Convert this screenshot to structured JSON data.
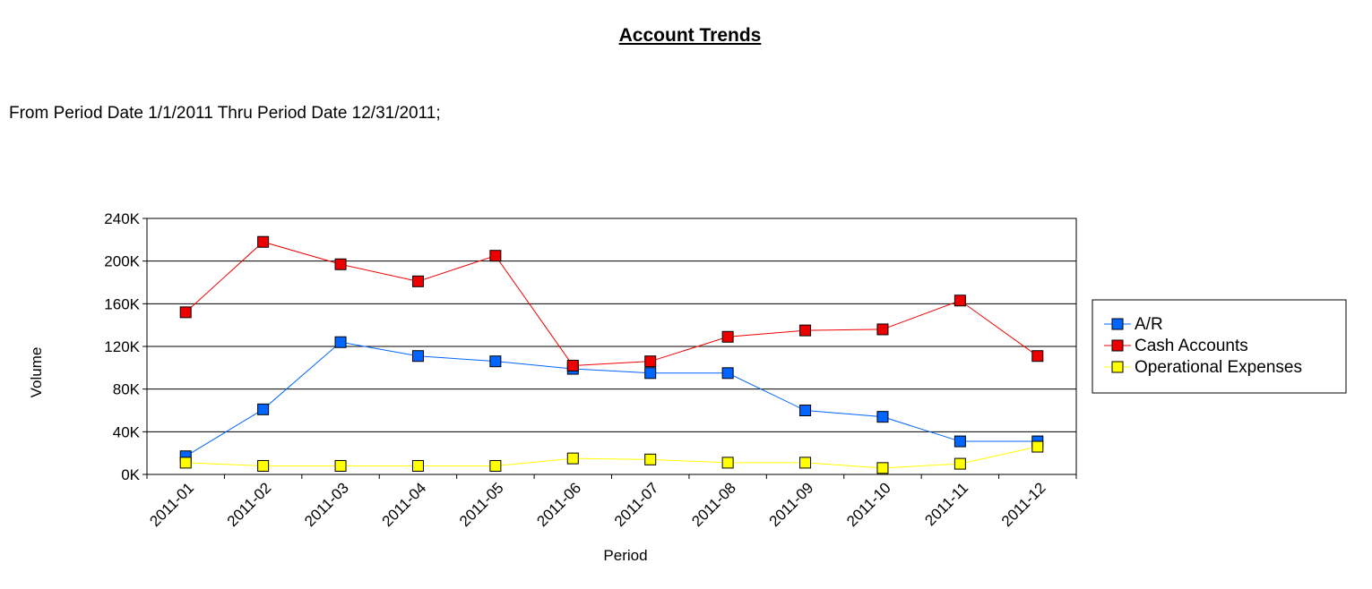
{
  "report": {
    "title": "Account Trends",
    "subtitle": "From Period Date 1/1/2011 Thru Period Date 12/31/2011;"
  },
  "chart_data": {
    "type": "line",
    "title": "",
    "xlabel": "Period",
    "ylabel": "Volume",
    "categories": [
      "2011-01",
      "2011-02",
      "2011-03",
      "2011-04",
      "2011-05",
      "2011-06",
      "2011-07",
      "2011-08",
      "2011-09",
      "2011-10",
      "2011-11",
      "2011-12"
    ],
    "yticks": [
      0,
      40000,
      80000,
      120000,
      160000,
      200000,
      240000
    ],
    "ytick_labels": [
      "0K",
      "40K",
      "80K",
      "120K",
      "160K",
      "200K",
      "240K"
    ],
    "ylim": [
      0,
      240000
    ],
    "grid": "horizontal",
    "legend_position": "right",
    "series": [
      {
        "name": "A/R",
        "color": "#0066ff",
        "values": [
          17000,
          61000,
          124000,
          111000,
          106000,
          99000,
          95000,
          95000,
          60000,
          54000,
          31000,
          31000
        ]
      },
      {
        "name": "Cash Accounts",
        "color": "#ee0000",
        "values": [
          152000,
          218000,
          197000,
          181000,
          205000,
          102000,
          106000,
          129000,
          135000,
          136000,
          163000,
          111000
        ]
      },
      {
        "name": "Operational Expenses",
        "color": "#ffff00",
        "values": [
          11000,
          8000,
          8000,
          8000,
          8000,
          15000,
          14000,
          11000,
          11000,
          6000,
          10000,
          26000
        ]
      }
    ]
  }
}
